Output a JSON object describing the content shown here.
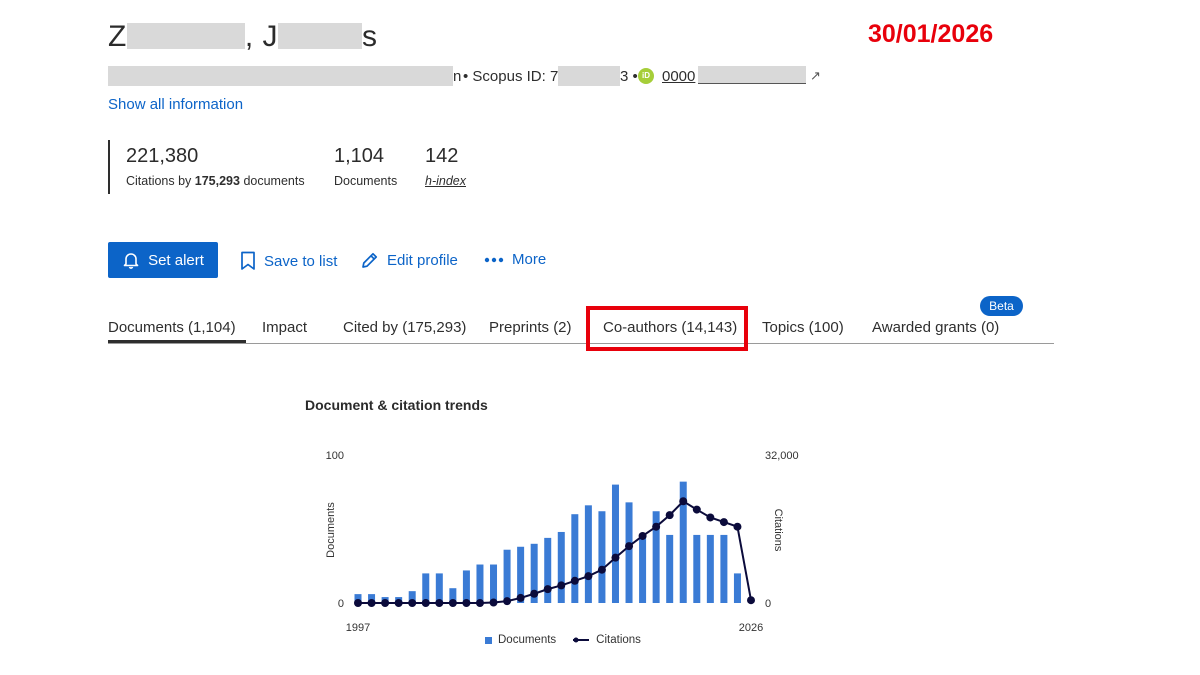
{
  "header": {
    "name_start": "Z",
    "name_mid": ", J",
    "name_end": "s",
    "date_stamp": "30/01/2026"
  },
  "meta": {
    "aff_tail": "n",
    "scopus_prefix": "• Scopus ID: 7",
    "scopus_tail": "3 •",
    "orcid_icon": "iD",
    "orcid_prefix": "0000",
    "show_all": "Show all information"
  },
  "metrics": {
    "citations": "221,380",
    "citations_label_pre": "Citations by ",
    "citations_label_bold": "175,293",
    "citations_label_post": " documents",
    "documents": "1,104",
    "documents_label": "Documents",
    "hindex": "142",
    "hindex_label": "h-index"
  },
  "actions": {
    "set_alert": "Set alert",
    "save_to_list": "Save to list",
    "edit_profile": "Edit profile",
    "more": "More"
  },
  "tabs": [
    {
      "label": "Documents (1,104)"
    },
    {
      "label": "Impact"
    },
    {
      "label": "Cited by (175,293)"
    },
    {
      "label": "Preprints (2)"
    },
    {
      "label": "Co-authors (14,143)"
    },
    {
      "label": "Topics (100)"
    },
    {
      "label": "Awarded grants (0)"
    }
  ],
  "beta_badge": "Beta",
  "colors": {
    "accent": "#0c64c8",
    "highlight": "#e8000b",
    "bars": "#3a7bd5",
    "line": "#0b0b3b"
  },
  "chart_data": {
    "type": "bar+line",
    "title": "Document & citation trends",
    "x": [
      1997,
      1998,
      1999,
      2000,
      2001,
      2002,
      2003,
      2004,
      2005,
      2006,
      2007,
      2008,
      2009,
      2010,
      2011,
      2012,
      2013,
      2014,
      2015,
      2016,
      2017,
      2018,
      2019,
      2020,
      2021,
      2022,
      2023,
      2024,
      2025,
      2026
    ],
    "x_tick_labels": [
      "1997",
      "2026"
    ],
    "series": [
      {
        "name": "Documents",
        "axis": "left",
        "kind": "bar",
        "values": [
          6,
          6,
          4,
          4,
          8,
          20,
          20,
          10,
          22,
          26,
          26,
          36,
          38,
          40,
          44,
          48,
          60,
          66,
          62,
          80,
          68,
          46,
          62,
          46,
          82,
          46,
          46,
          46,
          20,
          0
        ]
      },
      {
        "name": "Citations",
        "axis": "right",
        "kind": "line",
        "values": [
          0,
          0,
          0,
          0,
          0,
          0,
          0,
          0,
          0,
          0,
          100,
          400,
          1100,
          2000,
          3000,
          3800,
          4800,
          5800,
          7200,
          9800,
          12300,
          14500,
          16500,
          19000,
          22000,
          20200,
          18500,
          17500,
          16500,
          600
        ]
      }
    ],
    "ylabel_left": "Documents",
    "ylabel_right": "Citations",
    "ylim_left": [
      0,
      100
    ],
    "ylim_right": [
      0,
      32000
    ],
    "y_left_ticks": [
      "0",
      "100"
    ],
    "y_right_ticks": [
      "0",
      "32,000"
    ],
    "legend": "bottom",
    "grid": false
  }
}
